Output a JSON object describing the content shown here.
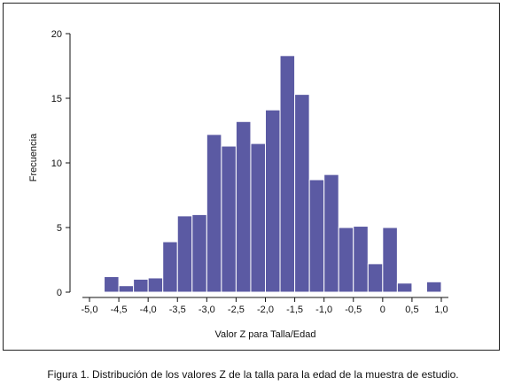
{
  "caption": "Figura 1. Distribución de los valores Z de la talla para la edad de la muestra de estudio.",
  "chart_data": {
    "type": "bar",
    "title": "",
    "xlabel": "Valor Z para Talla/Edad",
    "ylabel": "Frecuencia",
    "xlim": [
      -5.0,
      1.0
    ],
    "ylim": [
      0,
      20
    ],
    "x_ticks": [
      -5.0,
      -4.5,
      -4.0,
      -3.5,
      -3.0,
      -2.5,
      -2.0,
      -1.5,
      -1.0,
      -0.5,
      0,
      0.5,
      1.0
    ],
    "x_tick_labels": [
      "-5,0",
      "-4,5",
      "-4,0",
      "-3,5",
      "-3,0",
      "-2,5",
      "-2,0",
      "-1,5",
      "-1,0",
      "-0,5",
      "0",
      "0,5",
      "1,0"
    ],
    "y_ticks": [
      0,
      5,
      10,
      15,
      20
    ],
    "bin_width": 0.25,
    "bins": [
      {
        "x0": -4.75,
        "value": 1.2
      },
      {
        "x0": -4.5,
        "value": 0.5
      },
      {
        "x0": -4.25,
        "value": 1.0
      },
      {
        "x0": -4.0,
        "value": 1.1
      },
      {
        "x0": -3.75,
        "value": 3.9
      },
      {
        "x0": -3.5,
        "value": 5.9
      },
      {
        "x0": -3.25,
        "value": 6.0
      },
      {
        "x0": -3.0,
        "value": 12.2
      },
      {
        "x0": -2.75,
        "value": 11.3
      },
      {
        "x0": -2.5,
        "value": 13.2
      },
      {
        "x0": -2.25,
        "value": 11.5
      },
      {
        "x0": -2.0,
        "value": 14.1
      },
      {
        "x0": -1.75,
        "value": 18.3
      },
      {
        "x0": -1.5,
        "value": 15.3
      },
      {
        "x0": -1.25,
        "value": 8.7
      },
      {
        "x0": -1.0,
        "value": 9.1
      },
      {
        "x0": -0.75,
        "value": 5.0
      },
      {
        "x0": -0.5,
        "value": 5.1
      },
      {
        "x0": -0.25,
        "value": 2.2
      },
      {
        "x0": 0.0,
        "value": 5.0
      },
      {
        "x0": 0.25,
        "value": 0.7
      },
      {
        "x0": 0.75,
        "value": 0.8
      }
    ],
    "bar_color": "#5b5aa3",
    "bar_edge_color": "#ffffff",
    "grid": false,
    "legend": "none"
  }
}
